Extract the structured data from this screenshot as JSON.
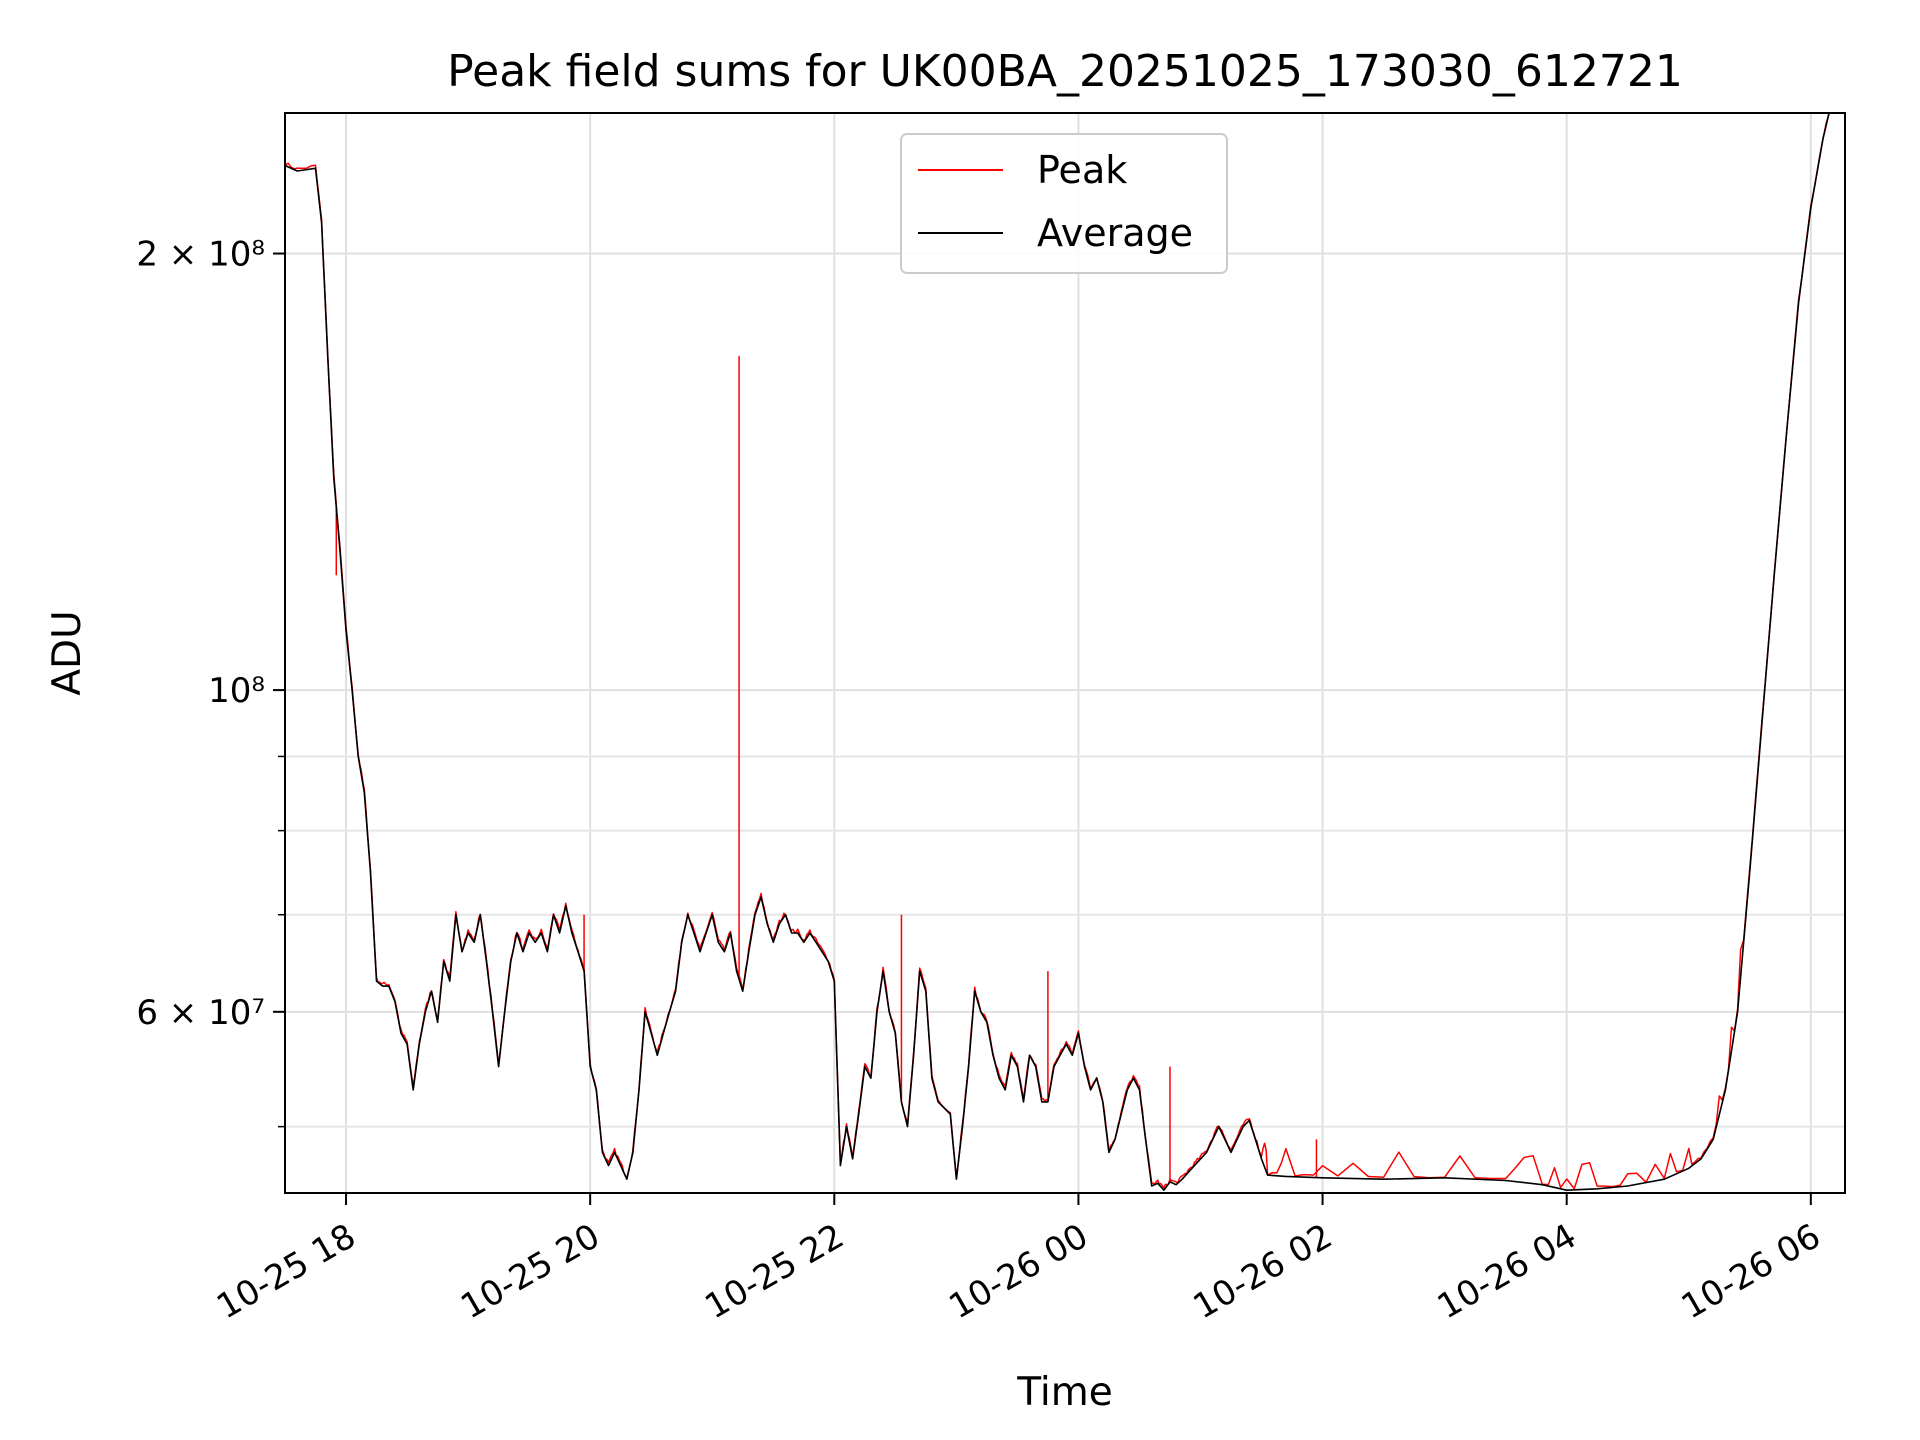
{
  "chart_data": {
    "type": "line",
    "title": "Peak field sums for UK00BA_20251025_173030_612721",
    "xlabel": "Time",
    "ylabel": "ADU",
    "x_unit": "hours since 10-25 17:30",
    "xlim": [
      0.0,
      12.78
    ],
    "ylim": [
      45000000,
      250000000
    ],
    "yscale": "log",
    "grid": true,
    "legend_position": "top-center",
    "x_ticks": [
      {
        "value": 0.5,
        "label": "10-25 18"
      },
      {
        "value": 2.5,
        "label": "10-25 20"
      },
      {
        "value": 4.5,
        "label": "10-25 22"
      },
      {
        "value": 6.5,
        "label": "10-26 00"
      },
      {
        "value": 8.5,
        "label": "10-26 02"
      },
      {
        "value": 10.5,
        "label": "10-26 04"
      },
      {
        "value": 12.5,
        "label": "10-26 06"
      }
    ],
    "y_ticks": [
      {
        "value": 60000000,
        "label": "6 × 10⁷"
      },
      {
        "value": 100000000,
        "label": "10⁸"
      },
      {
        "value": 200000000,
        "label": "2 × 10⁸"
      }
    ],
    "series": [
      {
        "name": "Average",
        "color": "#000000",
        "points": [
          [
            0.0,
            230000000
          ],
          [
            0.1,
            228000000
          ],
          [
            0.25,
            229000000
          ],
          [
            0.3,
            210000000
          ],
          [
            0.35,
            170000000
          ],
          [
            0.4,
            140000000
          ],
          [
            0.45,
            125000000
          ],
          [
            0.5,
            110000000
          ],
          [
            0.55,
            100000000
          ],
          [
            0.6,
            90000000
          ],
          [
            0.65,
            85000000
          ],
          [
            0.7,
            75000000
          ],
          [
            0.75,
            63000000
          ],
          [
            0.8,
            62500000
          ],
          [
            0.85,
            62500000
          ],
          [
            0.9,
            61000000
          ],
          [
            0.95,
            58000000
          ],
          [
            1.0,
            57000000
          ],
          [
            1.05,
            53000000
          ],
          [
            1.1,
            57000000
          ],
          [
            1.15,
            60000000
          ],
          [
            1.2,
            62000000
          ],
          [
            1.25,
            59000000
          ],
          [
            1.3,
            65000000
          ],
          [
            1.35,
            63000000
          ],
          [
            1.4,
            70000000
          ],
          [
            1.45,
            66000000
          ],
          [
            1.5,
            68000000
          ],
          [
            1.55,
            67000000
          ],
          [
            1.6,
            70000000
          ],
          [
            1.65,
            65000000
          ],
          [
            1.7,
            60000000
          ],
          [
            1.75,
            55000000
          ],
          [
            1.8,
            60000000
          ],
          [
            1.85,
            65000000
          ],
          [
            1.9,
            68000000
          ],
          [
            1.95,
            66000000
          ],
          [
            2.0,
            68000000
          ],
          [
            2.05,
            67000000
          ],
          [
            2.1,
            68000000
          ],
          [
            2.15,
            66000000
          ],
          [
            2.2,
            70000000
          ],
          [
            2.25,
            68000000
          ],
          [
            2.3,
            71000000
          ],
          [
            2.35,
            68000000
          ],
          [
            2.4,
            66000000
          ],
          [
            2.45,
            64000000
          ],
          [
            2.5,
            55000000
          ],
          [
            2.55,
            53000000
          ],
          [
            2.6,
            48000000
          ],
          [
            2.65,
            47000000
          ],
          [
            2.7,
            48000000
          ],
          [
            2.75,
            47000000
          ],
          [
            2.8,
            46000000
          ],
          [
            2.85,
            48000000
          ],
          [
            2.9,
            53000000
          ],
          [
            2.95,
            60000000
          ],
          [
            3.0,
            58000000
          ],
          [
            3.05,
            56000000
          ],
          [
            3.1,
            58000000
          ],
          [
            3.15,
            60000000
          ],
          [
            3.2,
            62000000
          ],
          [
            3.25,
            67000000
          ],
          [
            3.3,
            70000000
          ],
          [
            3.35,
            68000000
          ],
          [
            3.4,
            66000000
          ],
          [
            3.45,
            68000000
          ],
          [
            3.5,
            70000000
          ],
          [
            3.55,
            67000000
          ],
          [
            3.6,
            66000000
          ],
          [
            3.65,
            68000000
          ],
          [
            3.7,
            64000000
          ],
          [
            3.75,
            62000000
          ],
          [
            3.8,
            66000000
          ],
          [
            3.85,
            70000000
          ],
          [
            3.9,
            72000000
          ],
          [
            3.95,
            69000000
          ],
          [
            4.0,
            67000000
          ],
          [
            4.05,
            69000000
          ],
          [
            4.1,
            70000000
          ],
          [
            4.15,
            68000000
          ],
          [
            4.2,
            68000000
          ],
          [
            4.25,
            67000000
          ],
          [
            4.3,
            68000000
          ],
          [
            4.35,
            67000000
          ],
          [
            4.4,
            66000000
          ],
          [
            4.45,
            65000000
          ],
          [
            4.5,
            63000000
          ],
          [
            4.55,
            47000000
          ],
          [
            4.6,
            50000000
          ],
          [
            4.65,
            47500000
          ],
          [
            4.7,
            51000000
          ],
          [
            4.75,
            55000000
          ],
          [
            4.8,
            54000000
          ],
          [
            4.85,
            60000000
          ],
          [
            4.9,
            64000000
          ],
          [
            4.95,
            60000000
          ],
          [
            5.0,
            58000000
          ],
          [
            5.05,
            52000000
          ],
          [
            5.1,
            50000000
          ],
          [
            5.15,
            56000000
          ],
          [
            5.2,
            64000000
          ],
          [
            5.25,
            62000000
          ],
          [
            5.3,
            54000000
          ],
          [
            5.35,
            52000000
          ],
          [
            5.45,
            51000000
          ],
          [
            5.5,
            46000000
          ],
          [
            5.55,
            50000000
          ],
          [
            5.6,
            55000000
          ],
          [
            5.65,
            62000000
          ],
          [
            5.7,
            60000000
          ],
          [
            5.75,
            59000000
          ],
          [
            5.8,
            56000000
          ],
          [
            5.85,
            54000000
          ],
          [
            5.9,
            53000000
          ],
          [
            5.95,
            56000000
          ],
          [
            6.0,
            55000000
          ],
          [
            6.05,
            52000000
          ],
          [
            6.1,
            56000000
          ],
          [
            6.15,
            55000000
          ],
          [
            6.2,
            52000000
          ],
          [
            6.25,
            52000000
          ],
          [
            6.3,
            55000000
          ],
          [
            6.35,
            56000000
          ],
          [
            6.4,
            57000000
          ],
          [
            6.45,
            56000000
          ],
          [
            6.5,
            58000000
          ],
          [
            6.55,
            55000000
          ],
          [
            6.6,
            53000000
          ],
          [
            6.65,
            54000000
          ],
          [
            6.7,
            52000000
          ],
          [
            6.75,
            48000000
          ],
          [
            6.8,
            49000000
          ],
          [
            6.85,
            51000000
          ],
          [
            6.9,
            53000000
          ],
          [
            6.95,
            54000000
          ],
          [
            7.0,
            53000000
          ],
          [
            7.05,
            49000000
          ],
          [
            7.1,
            45500000
          ],
          [
            7.15,
            45700000
          ],
          [
            7.2,
            45200000
          ],
          [
            7.25,
            45800000
          ],
          [
            7.3,
            45600000
          ],
          [
            7.35,
            46000000
          ],
          [
            7.4,
            46500000
          ],
          [
            7.45,
            47000000
          ],
          [
            7.5,
            47500000
          ],
          [
            7.55,
            48000000
          ],
          [
            7.6,
            49000000
          ],
          [
            7.65,
            50000000
          ],
          [
            7.7,
            49000000
          ],
          [
            7.75,
            48000000
          ],
          [
            7.8,
            49000000
          ],
          [
            7.85,
            50000000
          ],
          [
            7.9,
            50500000
          ],
          [
            7.95,
            49000000
          ],
          [
            8.0,
            47500000
          ],
          [
            8.05,
            46300000
          ],
          [
            8.2,
            46200000
          ],
          [
            8.5,
            46100000
          ],
          [
            9.0,
            46000000
          ],
          [
            9.5,
            46100000
          ],
          [
            10.0,
            45900000
          ],
          [
            10.3,
            45600000
          ],
          [
            10.5,
            45200000
          ],
          [
            10.75,
            45300000
          ],
          [
            11.0,
            45500000
          ],
          [
            11.3,
            46000000
          ],
          [
            11.5,
            46800000
          ],
          [
            11.6,
            47500000
          ],
          [
            11.7,
            49000000
          ],
          [
            11.8,
            53000000
          ],
          [
            11.9,
            60000000
          ],
          [
            12.0,
            75000000
          ],
          [
            12.1,
            95000000
          ],
          [
            12.2,
            120000000
          ],
          [
            12.3,
            150000000
          ],
          [
            12.4,
            185000000
          ],
          [
            12.5,
            215000000
          ],
          [
            12.6,
            240000000
          ],
          [
            12.65,
            250000000
          ]
        ]
      },
      {
        "name": "Peak",
        "color": "#ff0000",
        "spikes": [
          [
            3.72,
            170000000
          ],
          [
            2.45,
            70000000
          ],
          [
            5.05,
            70000000
          ],
          [
            6.25,
            64000000
          ],
          [
            7.25,
            55000000
          ],
          [
            8.45,
            49000000
          ],
          [
            0.42,
            120000000
          ]
        ]
      }
    ]
  }
}
